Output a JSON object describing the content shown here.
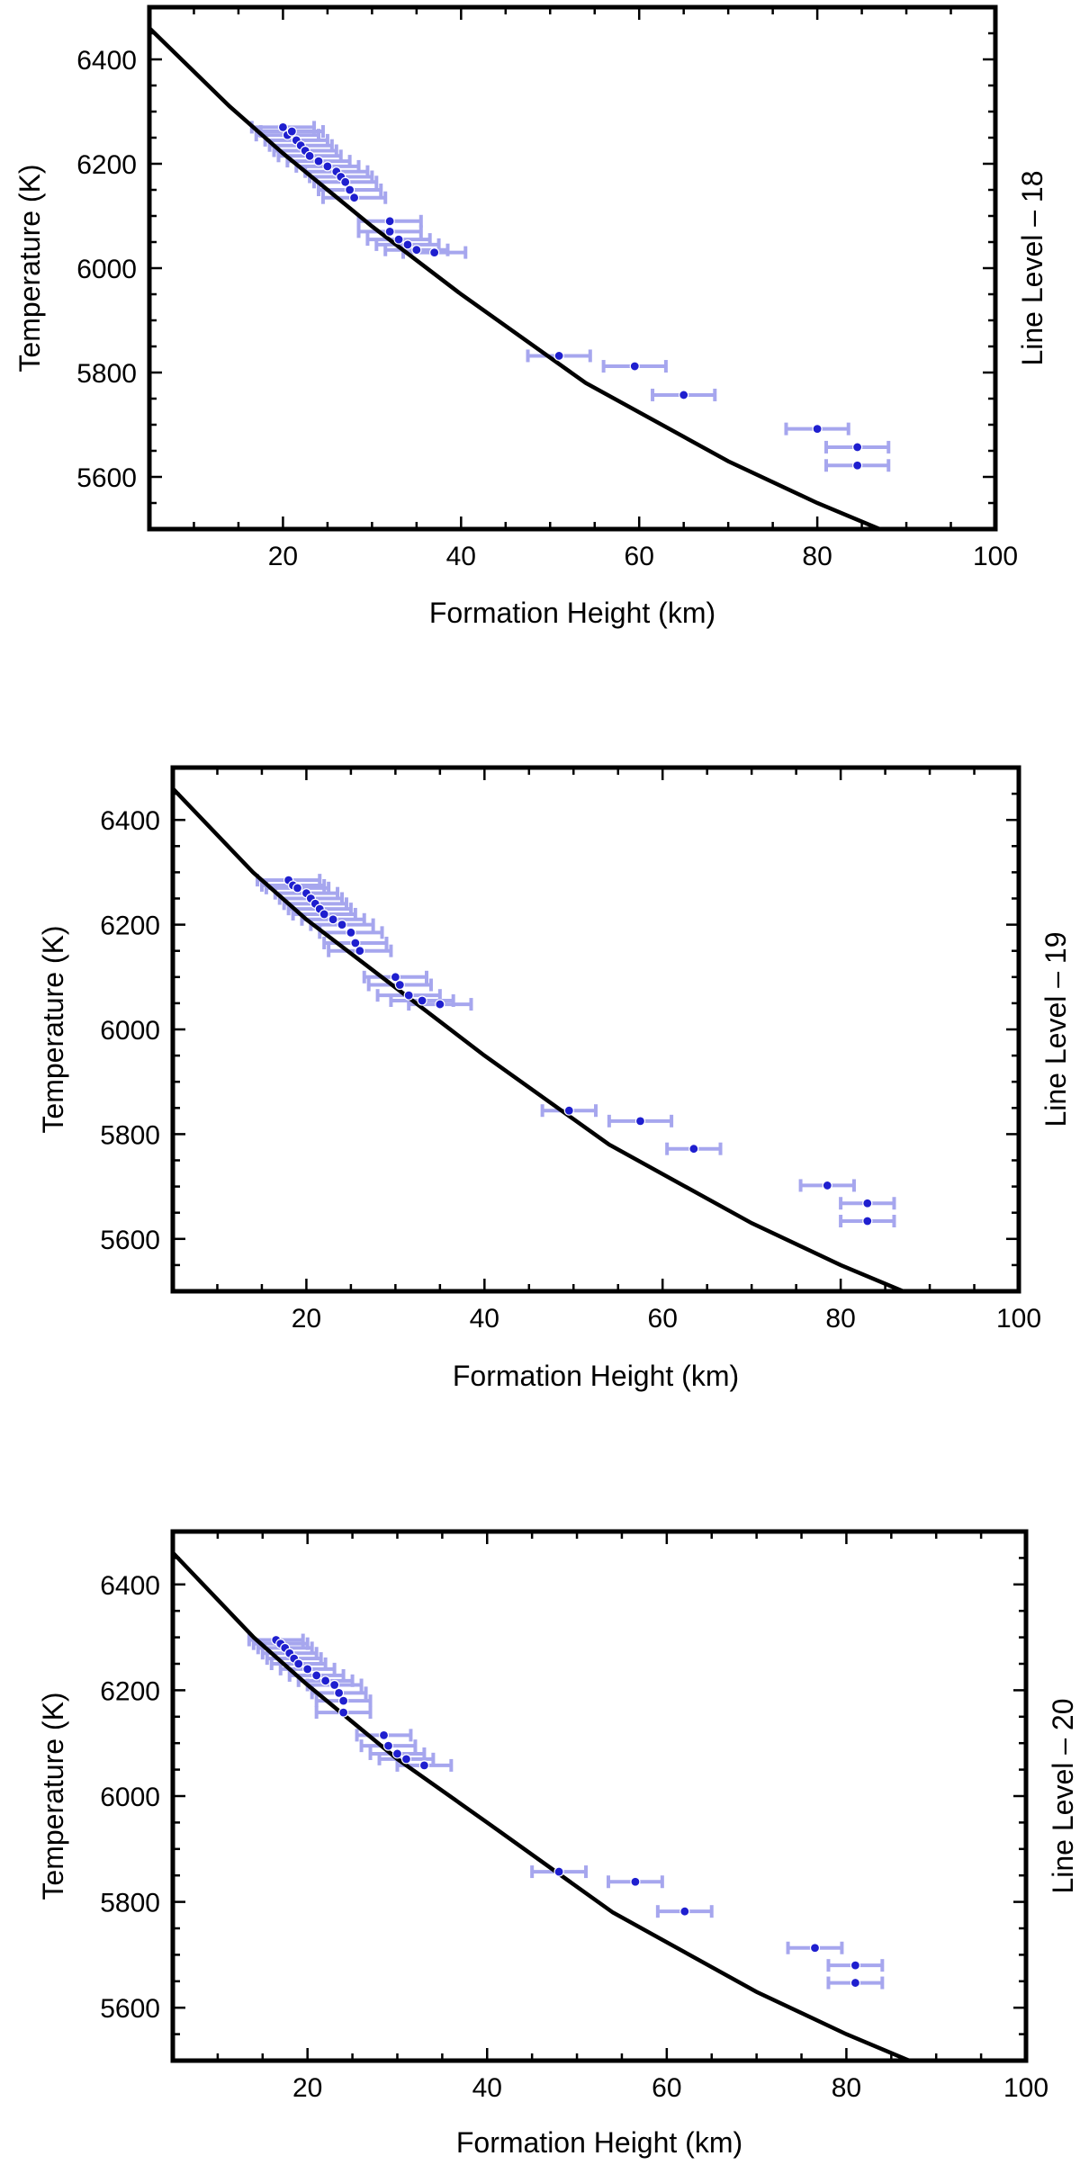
{
  "chart_data": [
    {
      "type": "scatter",
      "xlabel": "Formation Height (km)",
      "ylabel": "Temperature (K)",
      "side_label": "Line Level – 18",
      "xlim": [
        5,
        100
      ],
      "ylim": [
        5500,
        6500
      ],
      "xticks": [
        20,
        40,
        60,
        80,
        100
      ],
      "yticks": [
        5600,
        5800,
        6000,
        6200,
        6400
      ],
      "model_curve": {
        "x": [
          5,
          14,
          20,
          30,
          40,
          54,
          70,
          80,
          87
        ],
        "y": [
          6460,
          6310,
          6220,
          6080,
          5950,
          5780,
          5630,
          5550,
          5500
        ]
      },
      "points": [
        {
          "x": 20,
          "y": 6270,
          "xerr": 3.5
        },
        {
          "x": 20.5,
          "y": 6255,
          "xerr": 3.5
        },
        {
          "x": 21,
          "y": 6262,
          "xerr": 3.5
        },
        {
          "x": 21.5,
          "y": 6245,
          "xerr": 3.5
        },
        {
          "x": 22,
          "y": 6235,
          "xerr": 3.5
        },
        {
          "x": 22.5,
          "y": 6225,
          "xerr": 3.5
        },
        {
          "x": 23,
          "y": 6215,
          "xerr": 3.5
        },
        {
          "x": 24,
          "y": 6205,
          "xerr": 3.5
        },
        {
          "x": 25,
          "y": 6195,
          "xerr": 3.5
        },
        {
          "x": 26,
          "y": 6185,
          "xerr": 3.5
        },
        {
          "x": 26.5,
          "y": 6175,
          "xerr": 3.5
        },
        {
          "x": 27,
          "y": 6165,
          "xerr": 3.5
        },
        {
          "x": 27.5,
          "y": 6150,
          "xerr": 3.5
        },
        {
          "x": 28,
          "y": 6135,
          "xerr": 3.5
        },
        {
          "x": 32,
          "y": 6090,
          "xerr": 3.5
        },
        {
          "x": 32,
          "y": 6070,
          "xerr": 3.5
        },
        {
          "x": 33,
          "y": 6055,
          "xerr": 3.5
        },
        {
          "x": 34,
          "y": 6045,
          "xerr": 3.5
        },
        {
          "x": 35,
          "y": 6035,
          "xerr": 3.5
        },
        {
          "x": 37,
          "y": 6030,
          "xerr": 3.5
        },
        {
          "x": 51,
          "y": 5832,
          "xerr": 3.5
        },
        {
          "x": 59.5,
          "y": 5812,
          "xerr": 3.5
        },
        {
          "x": 65,
          "y": 5757,
          "xerr": 3.5
        },
        {
          "x": 80,
          "y": 5692,
          "xerr": 3.5
        },
        {
          "x": 84.5,
          "y": 5657,
          "xerr": 3.5
        },
        {
          "x": 84.5,
          "y": 5622,
          "xerr": 3.5
        }
      ]
    },
    {
      "type": "scatter",
      "xlabel": "Formation Height (km)",
      "ylabel": "Temperature (K)",
      "side_label": "Line Level – 19",
      "xlim": [
        5,
        100
      ],
      "ylim": [
        5500,
        6500
      ],
      "xticks": [
        20,
        40,
        60,
        80,
        100
      ],
      "yticks": [
        5600,
        5800,
        6000,
        6200,
        6400
      ],
      "model_curve": {
        "x": [
          5,
          14,
          20,
          30,
          40,
          54,
          70,
          80,
          87
        ],
        "y": [
          6460,
          6300,
          6210,
          6080,
          5950,
          5780,
          5630,
          5550,
          5500
        ]
      },
      "points": [
        {
          "x": 18,
          "y": 6285,
          "xerr": 3.5
        },
        {
          "x": 18.5,
          "y": 6275,
          "xerr": 3.5
        },
        {
          "x": 19,
          "y": 6270,
          "xerr": 3.5
        },
        {
          "x": 20,
          "y": 6260,
          "xerr": 3.5
        },
        {
          "x": 20.5,
          "y": 6250,
          "xerr": 3.5
        },
        {
          "x": 21,
          "y": 6240,
          "xerr": 3.5
        },
        {
          "x": 21.5,
          "y": 6230,
          "xerr": 3.5
        },
        {
          "x": 22,
          "y": 6220,
          "xerr": 3.5
        },
        {
          "x": 23,
          "y": 6210,
          "xerr": 3.5
        },
        {
          "x": 24,
          "y": 6200,
          "xerr": 3.5
        },
        {
          "x": 25,
          "y": 6185,
          "xerr": 3.5
        },
        {
          "x": 25.5,
          "y": 6165,
          "xerr": 3.5
        },
        {
          "x": 26,
          "y": 6150,
          "xerr": 3.5
        },
        {
          "x": 30,
          "y": 6100,
          "xerr": 3.5
        },
        {
          "x": 30.5,
          "y": 6085,
          "xerr": 3.5
        },
        {
          "x": 31.5,
          "y": 6065,
          "xerr": 3.5
        },
        {
          "x": 33,
          "y": 6055,
          "xerr": 3.5
        },
        {
          "x": 35,
          "y": 6048,
          "xerr": 3.5
        },
        {
          "x": 49.5,
          "y": 5845,
          "xerr": 3.0
        },
        {
          "x": 57.5,
          "y": 5825,
          "xerr": 3.5
        },
        {
          "x": 63.5,
          "y": 5772,
          "xerr": 3.0
        },
        {
          "x": 78.5,
          "y": 5702,
          "xerr": 3.0
        },
        {
          "x": 83,
          "y": 5668,
          "xerr": 3.0
        },
        {
          "x": 83,
          "y": 5634,
          "xerr": 3.0
        }
      ]
    },
    {
      "type": "scatter",
      "xlabel": "Formation Height (km)",
      "ylabel": "Temperature (K)",
      "side_label": "Line Level – 20",
      "xlim": [
        5,
        100
      ],
      "ylim": [
        5500,
        6500
      ],
      "xticks": [
        20,
        40,
        60,
        80,
        100
      ],
      "yticks": [
        5600,
        5800,
        6000,
        6200,
        6400
      ],
      "model_curve": {
        "x": [
          5,
          14,
          20,
          30,
          40,
          54,
          70,
          80,
          87
        ],
        "y": [
          6460,
          6300,
          6210,
          6070,
          5950,
          5780,
          5630,
          5550,
          5500
        ]
      },
      "points": [
        {
          "x": 16.5,
          "y": 6295,
          "xerr": 3.0
        },
        {
          "x": 17,
          "y": 6288,
          "xerr": 3.0
        },
        {
          "x": 17.5,
          "y": 6280,
          "xerr": 3.0
        },
        {
          "x": 18,
          "y": 6270,
          "xerr": 3.0
        },
        {
          "x": 18.5,
          "y": 6260,
          "xerr": 3.0
        },
        {
          "x": 19,
          "y": 6250,
          "xerr": 3.0
        },
        {
          "x": 20,
          "y": 6240,
          "xerr": 3.0
        },
        {
          "x": 21,
          "y": 6228,
          "xerr": 3.0
        },
        {
          "x": 22,
          "y": 6218,
          "xerr": 3.0
        },
        {
          "x": 23,
          "y": 6210,
          "xerr": 3.0
        },
        {
          "x": 23.5,
          "y": 6195,
          "xerr": 3.0
        },
        {
          "x": 24,
          "y": 6180,
          "xerr": 3.0
        },
        {
          "x": 24,
          "y": 6158,
          "xerr": 3.0
        },
        {
          "x": 28.5,
          "y": 6115,
          "xerr": 3.0
        },
        {
          "x": 29,
          "y": 6095,
          "xerr": 3.0
        },
        {
          "x": 30,
          "y": 6080,
          "xerr": 3.0
        },
        {
          "x": 31,
          "y": 6070,
          "xerr": 3.0
        },
        {
          "x": 33,
          "y": 6058,
          "xerr": 3.0
        },
        {
          "x": 48,
          "y": 5857,
          "xerr": 3.0
        },
        {
          "x": 56.5,
          "y": 5838,
          "xerr": 3.0
        },
        {
          "x": 62,
          "y": 5782,
          "xerr": 3.0
        },
        {
          "x": 76.5,
          "y": 5713,
          "xerr": 3.0
        },
        {
          "x": 81,
          "y": 5680,
          "xerr": 3.0
        },
        {
          "x": 81,
          "y": 5647,
          "xerr": 3.0
        }
      ]
    }
  ]
}
